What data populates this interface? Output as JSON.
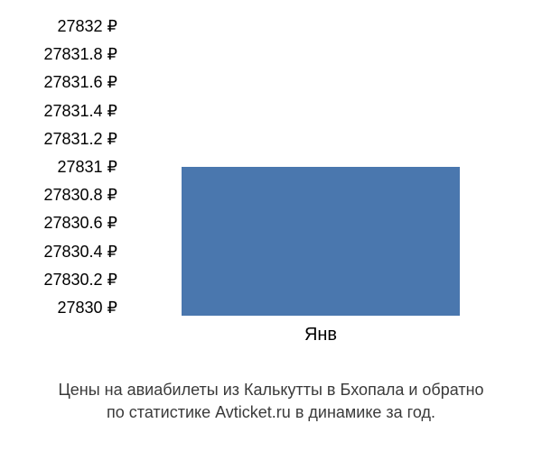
{
  "chart": {
    "type": "bar",
    "y_ticks": [
      "27832 ₽",
      "27831.8 ₽",
      "27831.6 ₽",
      "27831.4 ₽",
      "27831.2 ₽",
      "27831 ₽",
      "27830.8 ₽",
      "27830.6 ₽",
      "27830.4 ₽",
      "27830.2 ₽",
      "27830 ₽"
    ],
    "x_categories": [
      "Янв"
    ],
    "values": [
      27831
    ],
    "ylim": [
      27830,
      27832
    ],
    "ytick_step": 0.2,
    "bar_color": "#4a77ae",
    "bar_width_pct": 70,
    "bar_left_pct": 15,
    "background_color": "#ffffff",
    "tick_fontsize": 18,
    "tick_color": "#000000",
    "x_tick_fontsize": 20,
    "caption_fontsize": 18,
    "caption_color": "#3a3a3a"
  },
  "caption": {
    "line1": "Цены на авиабилеты из  Калькутты в Бхопала и обратно",
    "line2": "по статистике Avticket.ru в динамике за год."
  }
}
